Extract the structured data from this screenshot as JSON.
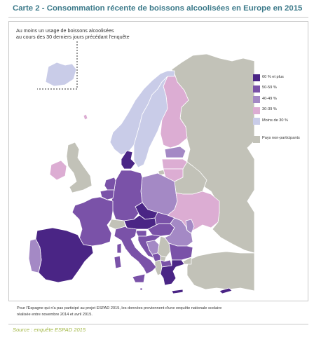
{
  "title": "Carte 2 - Consommation récente de boissons alcoolisées en Europe en 2015",
  "subtitle_line1": "Au moins un usage de boissons alcoolisées",
  "subtitle_line2": "au cours des 30 derniers jours précédant l'enquête",
  "colors": {
    "c60": "#4a2585",
    "c50": "#7a52a8",
    "c40": "#a489c5",
    "c30": "#dcadd3",
    "c00": "#c9cce8",
    "na": "#c2c2b8",
    "sea": "#ffffff",
    "border": "#ffffff"
  },
  "legend": [
    {
      "key": "c60",
      "label": "60 % et plus"
    },
    {
      "key": "c50",
      "label": "50-59 %"
    },
    {
      "key": "c40",
      "label": "40-49 %"
    },
    {
      "key": "c30",
      "label": "30-39 %"
    },
    {
      "key": "c00",
      "label": "Moins de 30 %"
    },
    {
      "key": "na",
      "label": "Pays non-participants"
    }
  ],
  "countries": [
    {
      "name": "iceland",
      "cls": "c00"
    },
    {
      "name": "norway",
      "cls": "c00"
    },
    {
      "name": "sweden",
      "cls": "c00"
    },
    {
      "name": "finland",
      "cls": "c30"
    },
    {
      "name": "russia",
      "cls": "na"
    },
    {
      "name": "estonia",
      "cls": "c40"
    },
    {
      "name": "latvia",
      "cls": "c30"
    },
    {
      "name": "lithuania",
      "cls": "c30"
    },
    {
      "name": "belarus",
      "cls": "na"
    },
    {
      "name": "ukraine",
      "cls": "c30"
    },
    {
      "name": "moldova",
      "cls": "c40"
    },
    {
      "name": "poland",
      "cls": "c40"
    },
    {
      "name": "germany",
      "cls": "c50"
    },
    {
      "name": "denmark",
      "cls": "c60"
    },
    {
      "name": "netherlands",
      "cls": "c50"
    },
    {
      "name": "belgium",
      "cls": "c50"
    },
    {
      "name": "france",
      "cls": "c50"
    },
    {
      "name": "uk",
      "cls": "na"
    },
    {
      "name": "ireland",
      "cls": "c30"
    },
    {
      "name": "spain",
      "cls": "c60"
    },
    {
      "name": "portugal",
      "cls": "c40"
    },
    {
      "name": "switzerland",
      "cls": "na"
    },
    {
      "name": "austria",
      "cls": "c60"
    },
    {
      "name": "czech",
      "cls": "c60"
    },
    {
      "name": "slovakia",
      "cls": "c50"
    },
    {
      "name": "hungary",
      "cls": "c50"
    },
    {
      "name": "italy",
      "cls": "c50"
    },
    {
      "name": "slovenia",
      "cls": "c50"
    },
    {
      "name": "croatia",
      "cls": "c50"
    },
    {
      "name": "bosnia",
      "cls": "c40"
    },
    {
      "name": "serbia",
      "cls": "na"
    },
    {
      "name": "montenegro",
      "cls": "c50"
    },
    {
      "name": "albania",
      "cls": "na"
    },
    {
      "name": "macedonia",
      "cls": "c50"
    },
    {
      "name": "romania",
      "cls": "c40"
    },
    {
      "name": "bulgaria",
      "cls": "c50"
    },
    {
      "name": "greece",
      "cls": "c60"
    },
    {
      "name": "turkey",
      "cls": "na"
    },
    {
      "name": "cyprus",
      "cls": "c60"
    },
    {
      "name": "sardinia",
      "cls": "c50"
    },
    {
      "name": "corsica",
      "cls": "c50"
    },
    {
      "name": "sicily",
      "cls": "c50"
    },
    {
      "name": "malta",
      "cls": "c50"
    },
    {
      "name": "faroe",
      "cls": "c30"
    },
    {
      "name": "kosovo",
      "cls": "na"
    }
  ],
  "footnote_line1": "Pour l'Espagne qui n'a pas participé au projet ESPAD 2015, les données proviennent d'une enquête nationale scolaire",
  "footnote_line2": "réalisée entre novembre 2014 et avril 2015.",
  "source": "Source : enquête ESPAD 2015"
}
